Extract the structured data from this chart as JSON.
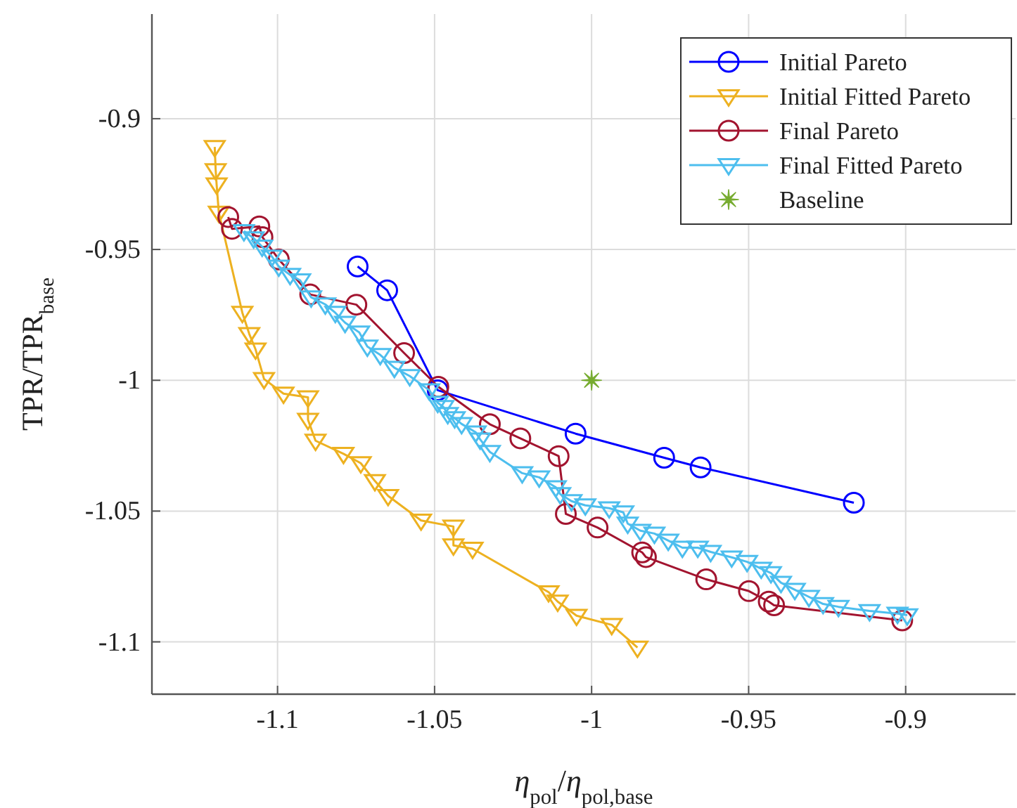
{
  "chart_data": {
    "type": "line",
    "xlabel": "η$_{pol}$/η$_{pol,base}$",
    "ylabel": "TPR/TPR$_{base}$",
    "xlim": [
      -1.14,
      -0.865
    ],
    "ylim": [
      -1.12,
      -0.86
    ],
    "xticks": [
      -1.1,
      -1.05,
      -1,
      -0.95,
      -0.9
    ],
    "yticks": [
      -1.1,
      -1.05,
      -1,
      -0.95,
      -0.9
    ],
    "grid": true,
    "legend": "top right",
    "line_style": "solid",
    "series": [
      {
        "name": "Initial Pareto",
        "color": "#0000ff",
        "marker": "circle",
        "x": [
          -1.0745,
          -1.0651,
          -1.049,
          -1.0051,
          -0.9769,
          -0.9653,
          -0.9165
        ],
        "values": [
          -0.9565,
          -0.9656,
          -1.0038,
          -1.0204,
          -1.0296,
          -1.0333,
          -1.0468
        ]
      },
      {
        "name": "Initial Fitted Pareto",
        "color": "#edb120",
        "marker": "triangle",
        "x": [
          -1.12,
          -1.1197,
          -1.1194,
          -1.1187,
          -1.1112,
          -1.109,
          -1.107,
          -1.1043,
          -1.0981,
          -1.0903,
          -1.0903,
          -1.0879,
          -1.079,
          -1.0735,
          -1.069,
          -1.0648,
          -1.0543,
          -1.044,
          -1.044,
          -1.0379,
          -1.0137,
          -1.0108,
          -1.0048,
          -0.9936,
          -0.9854
        ],
        "values": [
          -0.9108,
          -0.9197,
          -0.9251,
          -0.9359,
          -0.9742,
          -0.9823,
          -0.9882,
          -0.9995,
          -1.0051,
          -1.0065,
          -1.0151,
          -1.0231,
          -1.0281,
          -1.0317,
          -1.0385,
          -1.0442,
          -1.0536,
          -1.0559,
          -1.0631,
          -1.0644,
          -1.081,
          -1.0846,
          -1.09,
          -1.0935,
          -1.1022
        ]
      },
      {
        "name": "Final Pareto",
        "color": "#a2142f",
        "marker": "circle",
        "x": [
          -1.1157,
          -1.1145,
          -1.1058,
          -1.1048,
          -1.0996,
          -1.0896,
          -1.0749,
          -1.0597,
          -1.0488,
          -1.0324,
          -1.0227,
          -1.0105,
          -1.0082,
          -0.9981,
          -0.9839,
          -0.9827,
          -0.9635,
          -0.9499,
          -0.9436,
          -0.9419,
          -0.9011
        ],
        "values": [
          -0.9376,
          -0.9421,
          -0.9412,
          -0.9453,
          -0.9538,
          -0.9672,
          -0.9711,
          -0.9896,
          -1.0025,
          -1.0168,
          -1.0222,
          -1.029,
          -1.0511,
          -1.0563,
          -1.0658,
          -1.0676,
          -1.0761,
          -1.0806,
          -1.0846,
          -1.086,
          -1.0918
        ]
      },
      {
        "name": "Final Fitted Pareto",
        "color": "#4dbeee",
        "marker": "triangle",
        "x": [
          -1.1107,
          -1.1076,
          -1.1049,
          -1.1018,
          -1.0996,
          -1.096,
          -1.0928,
          -1.0893,
          -1.0848,
          -1.0816,
          -1.0785,
          -1.074,
          -1.0714,
          -1.0673,
          -1.0628,
          -1.0579,
          -1.0517,
          -1.049,
          -1.0472,
          -1.0458,
          -1.0436,
          -1.0414,
          -1.0369,
          -1.0355,
          -1.0324,
          -1.0221,
          -1.0167,
          -1.0114,
          -1.01,
          -1.0064,
          -1.002,
          -0.9944,
          -0.9899,
          -0.9885,
          -0.9845,
          -0.98,
          -0.9756,
          -0.9711,
          -0.9662,
          -0.9621,
          -0.9554,
          -0.9505,
          -0.946,
          -0.9429,
          -0.9397,
          -0.9353,
          -0.9308,
          -0.9263,
          -0.9214,
          -0.9115,
          -0.9026,
          -0.8995
        ],
        "values": [
          -0.943,
          -0.9457,
          -0.9489,
          -0.9527,
          -0.9565,
          -0.9597,
          -0.9618,
          -0.9683,
          -0.971,
          -0.9742,
          -0.978,
          -0.9817,
          -0.9871,
          -0.9903,
          -0.9952,
          -0.9984,
          -1.0038,
          -1.0086,
          -1.0102,
          -1.0129,
          -1.0145,
          -1.0167,
          -1.0199,
          -1.0226,
          -1.0274,
          -1.0355,
          -1.0371,
          -1.0409,
          -1.0435,
          -1.0462,
          -1.0478,
          -1.0489,
          -1.0505,
          -1.0548,
          -1.0575,
          -1.0586,
          -1.0613,
          -1.064,
          -1.064,
          -1.0656,
          -1.0677,
          -1.0694,
          -1.072,
          -1.0737,
          -1.0774,
          -1.0801,
          -1.0828,
          -1.0855,
          -1.0866,
          -1.0882,
          -1.0892,
          -1.0898
        ]
      },
      {
        "name": "Baseline",
        "type": "scatter",
        "color": "#77ac30",
        "marker": "star",
        "x": [
          -1
        ],
        "values": [
          -1
        ]
      }
    ]
  }
}
